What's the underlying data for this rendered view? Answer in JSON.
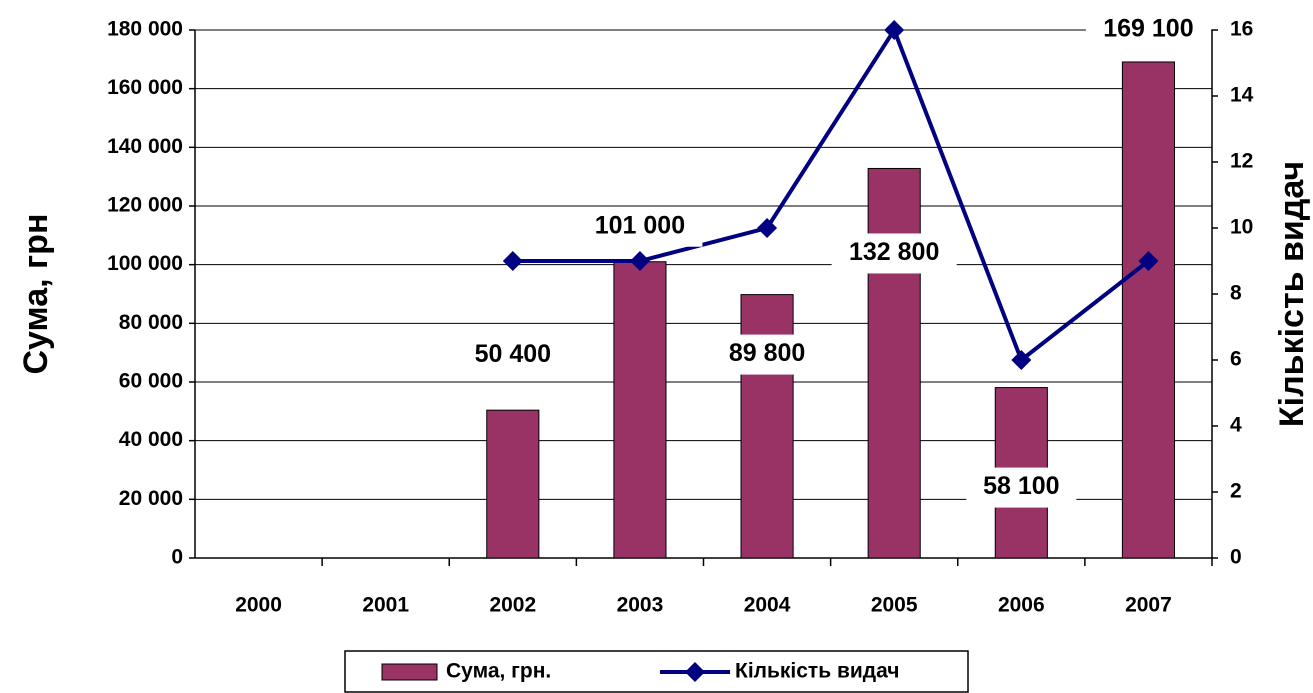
{
  "chart_data": {
    "type": "bar_line",
    "y_label": "Сума, грн",
    "y2_label": "Кількість видач",
    "categories": [
      "2000",
      "2001",
      "2002",
      "2003",
      "2004",
      "2005",
      "2006",
      "2007"
    ],
    "series": [
      {
        "name": "Сума, грн.",
        "type": "bar",
        "color": "#993366",
        "values": [
          null,
          null,
          50400,
          101000,
          89800,
          132800,
          58100,
          169100
        ],
        "value_labels": [
          null,
          null,
          "50 400",
          "101 000",
          "89 800",
          "132 800",
          "58 100",
          "169 100"
        ]
      },
      {
        "name": "Кількість видач",
        "type": "line",
        "axis": "y2",
        "color": "#000080",
        "values": [
          null,
          null,
          9,
          9,
          10,
          16,
          6,
          9
        ]
      }
    ],
    "ylim": [
      0,
      180000
    ],
    "yticks": [
      0,
      {
        "value": 20000,
        "label": "20 000"
      },
      {
        "value": 40000,
        "label": "40 000"
      },
      {
        "value": 60000,
        "label": "60 000"
      },
      {
        "value": 80000,
        "label": "80 000"
      },
      {
        "value": 100000,
        "label": "100 000"
      },
      {
        "value": 120000,
        "label": "120 000"
      },
      {
        "value": 140000,
        "label": "140 000"
      },
      {
        "value": 160000,
        "label": "160 000"
      },
      {
        "value": 180000,
        "label": "180 000"
      }
    ],
    "y2lim": [
      0,
      16
    ],
    "y2ticks": [
      0,
      2,
      4,
      6,
      8,
      10,
      12,
      14,
      16
    ],
    "grid": true,
    "legend": "bottom"
  }
}
